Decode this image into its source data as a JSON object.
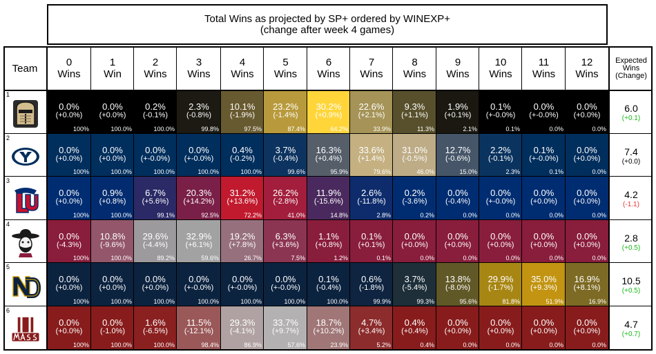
{
  "chart_data": {
    "type": "table",
    "title": "Total Wins as projected by SP+ ordered by WINEXP+",
    "subtitle": "(change after week 4 games)",
    "row_header": "Team",
    "columns": [
      {
        "num": "0",
        "unit": "Wins"
      },
      {
        "num": "1",
        "unit": "Win"
      },
      {
        "num": "2",
        "unit": "Wins"
      },
      {
        "num": "3",
        "unit": "Wins"
      },
      {
        "num": "4",
        "unit": "Wins"
      },
      {
        "num": "5",
        "unit": "Wins"
      },
      {
        "num": "6",
        "unit": "Wins"
      },
      {
        "num": "7",
        "unit": "Wins"
      },
      {
        "num": "8",
        "unit": "Wins"
      },
      {
        "num": "9",
        "unit": "Wins"
      },
      {
        "num": "10",
        "unit": "Wins"
      },
      {
        "num": "11",
        "unit": "Wins"
      },
      {
        "num": "12",
        "unit": "Wins"
      }
    ],
    "expected_header": [
      "Expected",
      "Wins",
      "(Change)"
    ],
    "rows": [
      {
        "rank": "1",
        "logo": "army-knight-helmet-logo",
        "primary": "#000000",
        "secondary": "#d3bc8d",
        "pct": [
          "0.0%",
          "0.0%",
          "0.2%",
          "2.3%",
          "10.1%",
          "23.2%",
          "30.2%",
          "22.6%",
          "9.3%",
          "1.9%",
          "0.1%",
          "0.0%",
          "0.0%"
        ],
        "change": [
          "(+0.0%)",
          "(+0.0%)",
          "(-0.1%)",
          "(-0.8%)",
          "(-1.9%)",
          "(-1.4%)",
          "(+0.9%)",
          "(+2.1%)",
          "(+1.1%)",
          "(+0.1%)",
          "(+-0.0%)",
          "(+-0.0%)",
          "(+0.0%)"
        ],
        "cum": [
          "100%",
          "100.0%",
          "100.0%",
          "99.8%",
          "97.5%",
          "87.4%",
          "64.2%",
          "33.9%",
          "11.3%",
          "2.1%",
          "0.1%",
          "0.0%",
          "0.0%"
        ],
        "cell_colors": [
          "#000000",
          "#000000",
          "#000000",
          "#1c1a12",
          "#685a30",
          "#b89a3c",
          "#ffd53a",
          "#a59357",
          "#58502c",
          "#1a1810",
          "#000000",
          "#000000",
          "#000000"
        ],
        "expected": "6.0",
        "expected_change": "(+0.1)",
        "expected_change_color": "#18b818"
      },
      {
        "rank": "2",
        "logo": "byu-oval-y-logo",
        "primary": "#002e5d",
        "secondary": "#d6c192",
        "pct": [
          "0.0%",
          "0.0%",
          "0.0%",
          "0.0%",
          "0.4%",
          "3.7%",
          "16.3%",
          "33.6%",
          "31.0%",
          "12.7%",
          "2.2%",
          "0.1%",
          "0.0%"
        ],
        "change": [
          "(+0.0%)",
          "(+0.0%)",
          "(+-0.0%)",
          "(+-0.0%)",
          "(-0.2%)",
          "(-0.4%)",
          "(+0.4%)",
          "(+1.4%)",
          "(-0.5%)",
          "(-0.6%)",
          "(-0.1%)",
          "(+-0.0%)",
          "(+0.0%)"
        ],
        "cum": [
          "100%",
          "100.0%",
          "100.0%",
          "100.0%",
          "100.0%",
          "99.6%",
          "95.9%",
          "79.6%",
          "46.0%",
          "15.0%",
          "2.3%",
          "0.1%",
          "0.0%"
        ],
        "cell_colors": [
          "#002e5d",
          "#002e5d",
          "#002e5d",
          "#002e5d",
          "#002e5d",
          "#0d3460",
          "#565e6a",
          "#c4b081",
          "#bdac86",
          "#465668",
          "#0a335f",
          "#002e5d",
          "#002e5d"
        ],
        "expected": "7.4",
        "expected_change": "(+0.0)",
        "expected_change_color": "#000000"
      },
      {
        "rank": "3",
        "logo": "liberty-lu-logo",
        "primary": "#002d72",
        "secondary": "#c8102e",
        "pct": [
          "0.0%",
          "0.9%",
          "6.7%",
          "20.3%",
          "31.2%",
          "26.2%",
          "11.9%",
          "2.6%",
          "0.2%",
          "0.0%",
          "0.0%",
          "0.0%",
          "0.0%"
        ],
        "change": [
          "(+0.0%)",
          "(+0.8%)",
          "(+5.6%)",
          "(+14.2%)",
          "(+13.6%)",
          "(-2.8%)",
          "(-15.6%)",
          "(-11.8%)",
          "(-3.6%)",
          "(-0.4%)",
          "(+-0.0%)",
          "(+0.0%)",
          "(+0.0%)"
        ],
        "cum": [
          "100%",
          "100.0%",
          "99.1%",
          "92.5%",
          "72.2%",
          "41.0%",
          "14.8%",
          "2.8%",
          "0.2%",
          "0.0%",
          "0.0%",
          "0.0%",
          "0.0%"
        ],
        "cell_colors": [
          "#002d72",
          "#032c70",
          "#2b2a66",
          "#7a2048",
          "#c11a2e",
          "#a21e3c",
          "#4a2a5e",
          "#0e2c6c",
          "#002d72",
          "#002d72",
          "#002d72",
          "#002d72",
          "#002d72"
        ],
        "expected": "4.2",
        "expected_change": "(-1.1)",
        "expected_change_color": "#e83030"
      },
      {
        "rank": "4",
        "logo": "nmsu-pistol-pete-logo",
        "primary": "#891d3c",
        "secondary": "#a4a4a4",
        "pct": [
          "0.0%",
          "10.8%",
          "29.6%",
          "32.9%",
          "19.2%",
          "6.3%",
          "1.1%",
          "0.1%",
          "0.0%",
          "0.0%",
          "0.0%",
          "0.0%",
          "0.0%"
        ],
        "change": [
          "(-4.3%)",
          "(-9.6%)",
          "(-4.4%)",
          "(+6.1%)",
          "(+7.8%)",
          "(+3.6%)",
          "(+0.8%)",
          "(+0.1%)",
          "(+0.0%)",
          "(+0.0%)",
          "(+0.0%)",
          "(+0.0%)",
          "(+0.0%)"
        ],
        "cum": [
          "100%",
          "100.0%",
          "89.2%",
          "59.6%",
          "26.7%",
          "7.5%",
          "1.2%",
          "0.1%",
          "0.0%",
          "0.0%",
          "0.0%",
          "0.0%",
          "0.0%"
        ],
        "cell_colors": [
          "#891d3c",
          "#93566a",
          "#9c9a9c",
          "#a3a2a3",
          "#97707e",
          "#8c3552",
          "#891d3c",
          "#891d3c",
          "#891d3c",
          "#891d3c",
          "#891d3c",
          "#891d3c",
          "#891d3c"
        ],
        "expected": "2.8",
        "expected_change": "(+0.5)",
        "expected_change_color": "#18b818"
      },
      {
        "rank": "5",
        "logo": "notre-dame-nd-logo",
        "primary": "#0c2340",
        "secondary": "#c99700",
        "pct": [
          "0.0%",
          "0.0%",
          "0.0%",
          "0.0%",
          "0.0%",
          "0.0%",
          "0.1%",
          "0.6%",
          "3.7%",
          "13.8%",
          "29.9%",
          "35.0%",
          "16.9%"
        ],
        "change": [
          "(+0.0%)",
          "(+0.0%)",
          "(+0.0%)",
          "(+-0.0%)",
          "(+-0.0%)",
          "(+-0.0%)",
          "(-0.4%)",
          "(-1.8%)",
          "(-5.4%)",
          "(-8.0%)",
          "(-1.7%)",
          "(+9.3%)",
          "(+8.1%)"
        ],
        "cum": [
          "100%",
          "100.0%",
          "100.0%",
          "100.0%",
          "100.0%",
          "100.0%",
          "100.0%",
          "99.9%",
          "99.3%",
          "95.6%",
          "81.8%",
          "51.9%",
          "16.9%"
        ],
        "cell_colors": [
          "#0c2340",
          "#0c2340",
          "#0c2340",
          "#0c2340",
          "#0c2340",
          "#0c2340",
          "#0c2340",
          "#0e2440",
          "#1e2f3a",
          "#615828",
          "#a88614",
          "#c29412",
          "#7d6a24"
        ],
        "expected": "10.5",
        "expected_change": "(+0.5)",
        "expected_change_color": "#18b818"
      },
      {
        "rank": "6",
        "logo": "umass-logo",
        "primary": "#881c1c",
        "secondary": "#b3b3b3",
        "pct": [
          "0.0%",
          "0.0%",
          "1.6%",
          "11.5%",
          "29.3%",
          "33.7%",
          "18.7%",
          "4.7%",
          "0.4%",
          "0.0%",
          "0.0%",
          "0.0%",
          "0.0%"
        ],
        "change": [
          "(+0.0%)",
          "(-1.0%)",
          "(-6.5%)",
          "(-12.1%)",
          "(-4.1%)",
          "(+9.7%)",
          "(+10.2%)",
          "(+3.4%)",
          "(+0.4%)",
          "(+0.0%)",
          "(+0.0%)",
          "(+0.0%)",
          "(+0.0%)"
        ],
        "cum": [
          "100%",
          "100.0%",
          "100.0%",
          "98.4%",
          "86.9%",
          "57.6%",
          "23.9%",
          "5.2%",
          "0.4%",
          "0.0%",
          "0.0%",
          "0.0%",
          "0.0%"
        ],
        "cell_colors": [
          "#881c1c",
          "#881c1c",
          "#8a2020",
          "#9a5858",
          "#b0a2a2",
          "#b3b1b1",
          "#a07676",
          "#8c2c2c",
          "#881c1c",
          "#881c1c",
          "#881c1c",
          "#881c1c",
          "#881c1c"
        ],
        "expected": "4.7",
        "expected_change": "(+0.7)",
        "expected_change_color": "#18b818"
      }
    ]
  }
}
